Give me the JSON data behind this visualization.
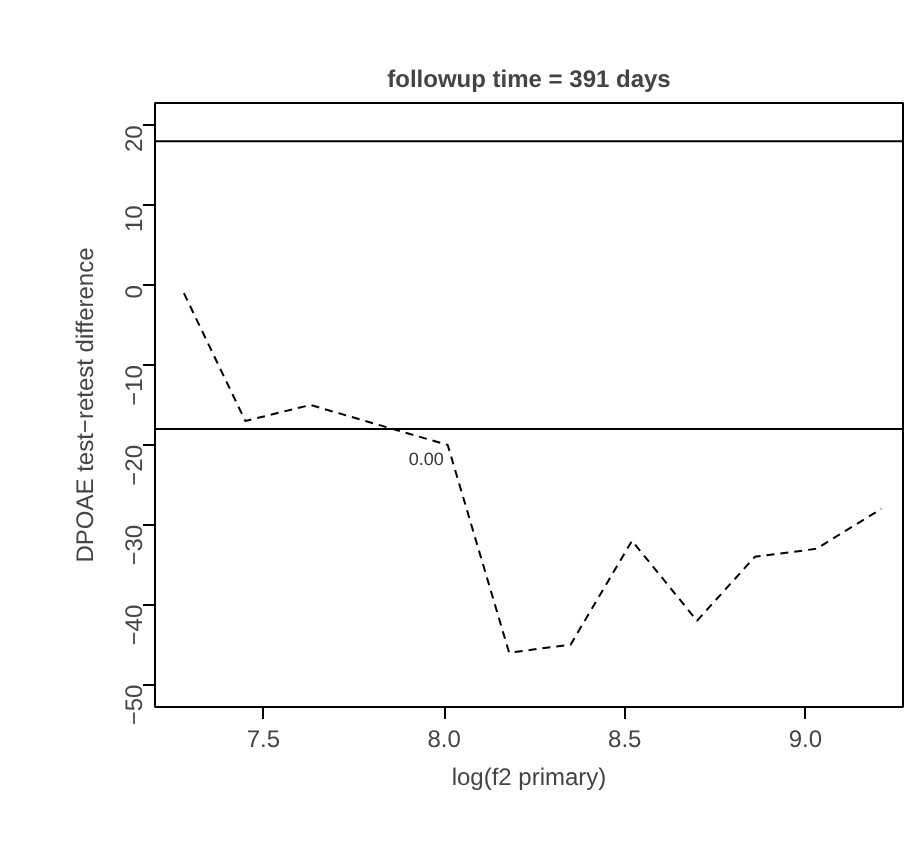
{
  "chart_data": {
    "type": "line",
    "title": "followup time = 391 days",
    "xlabel": "log(f2 primary)",
    "ylabel": "DPOAE test−retest difference",
    "x": [
      7.28,
      7.45,
      7.63,
      8.01,
      8.18,
      8.35,
      8.52,
      8.7,
      8.86,
      9.03,
      9.21
    ],
    "series": [
      {
        "color": "#000000",
        "values": [
          -1,
          -17,
          -15,
          -20,
          -46,
          -45,
          -32,
          -42,
          -34,
          -33,
          -28
        ]
      }
    ],
    "line_style": "dashed",
    "marker": "none",
    "grid": false,
    "xlim": [
      7.2,
      9.27
    ],
    "ylim": [
      -52.8,
      22.8
    ],
    "xticks": [
      7.5,
      {
        "value": 8,
        "label": "8.0"
      },
      8.5,
      {
        "value": 9,
        "label": "9.0"
      }
    ],
    "yticks": [
      -50,
      -40,
      -30,
      -20,
      -10,
      0,
      10,
      20
    ],
    "ref_lines": [
      {
        "axis": "y",
        "value": 18,
        "color": "#000000"
      },
      {
        "axis": "y",
        "value": -18,
        "color": "#000000"
      }
    ],
    "annotations": [
      {
        "text": "0.00",
        "x": 8.01,
        "y": -20
      }
    ]
  }
}
